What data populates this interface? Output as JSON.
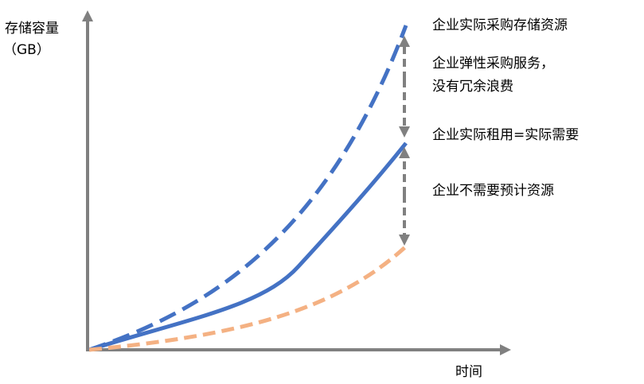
{
  "axes": {
    "y_label": "存储容量",
    "y_unit": "（GB）",
    "x_label": "时间"
  },
  "annotations": {
    "purchased": "企业实际采购存储资源",
    "elastic_line1": "企业弹性采购服务，",
    "elastic_line2": "没有冗余浪费",
    "rented": "企业实际租用=实际需要",
    "not_needed": "企业不需要预计资源"
  }
}
